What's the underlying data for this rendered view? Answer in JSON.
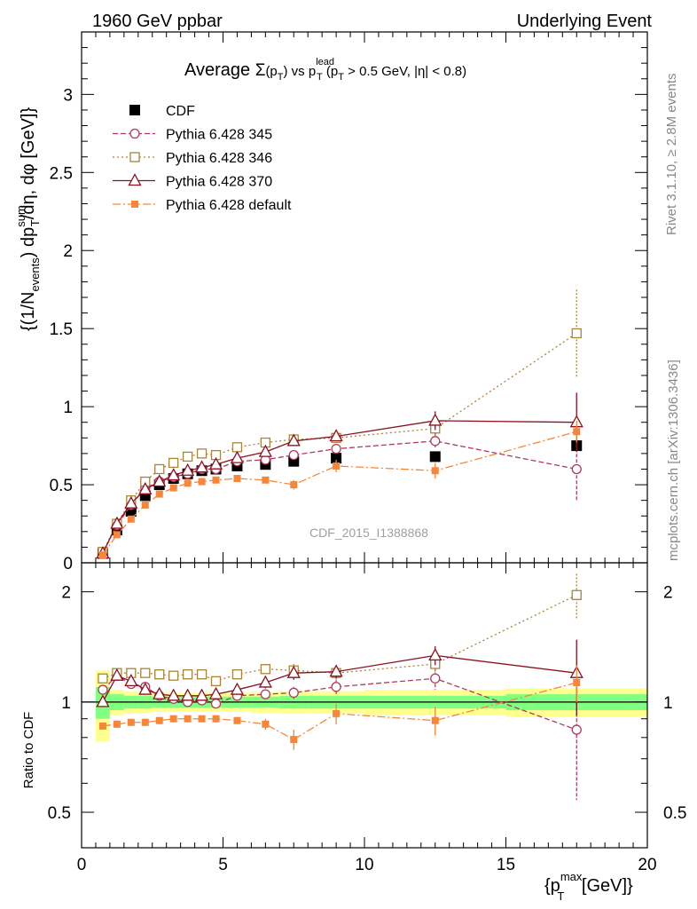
{
  "header": {
    "left": "1960 GeV ppbar",
    "right": "Underlying Event"
  },
  "side_labels": {
    "rivet": "Rivet 3.1.10, ≥ 2.8M events",
    "mcplots": "mcplots.cern.ch [arXiv:1306.3436]"
  },
  "watermark": "CDF_2015_I1388868",
  "chart_data": [
    {
      "type": "scatter",
      "panel": "main",
      "title": {
        "prefix": "Average ",
        "sigma": "Σ",
        "paren_open": "(p",
        "sub_T": "T",
        "paren_close": ")",
        "vs": " vs p",
        "sup_lead": "lead",
        "sub_T2": "T",
        "cut": " (p",
        "sub_T3": "T",
        "cut_rest": " > 0.5 GeV, |η| < 0.8)"
      },
      "ylabel": {
        "part1": "{(1/N",
        "sub_events": "events",
        "part2": ") dp",
        "sup_sum": "sum",
        "sub_T": "T",
        "part3": "/dη, dφ [GeV]}"
      },
      "xlim": [
        0,
        20
      ],
      "ylim": [
        0,
        3.4
      ],
      "y_ticks": [
        "0",
        "0.5",
        "1",
        "1.5",
        "2",
        "2.5",
        "3"
      ],
      "legend_position": "top-left",
      "series": [
        {
          "name": "CDF",
          "color": "#000000",
          "marker": "filled-square",
          "line": "none",
          "x": [
            0.75,
            1.25,
            1.75,
            2.25,
            2.75,
            3.25,
            3.75,
            4.25,
            4.75,
            5.5,
            6.5,
            7.5,
            9.0,
            12.5,
            17.5
          ],
          "y": [
            0.06,
            0.21,
            0.33,
            0.43,
            0.5,
            0.54,
            0.57,
            0.59,
            0.6,
            0.62,
            0.63,
            0.65,
            0.67,
            0.68,
            0.75
          ],
          "err": [
            0.005,
            0.005,
            0.01,
            0.01,
            0.01,
            0.01,
            0.01,
            0.01,
            0.01,
            0.01,
            0.01,
            0.015,
            0.02,
            0.025,
            0.04
          ]
        },
        {
          "name": "Pythia 6.428 345",
          "color": "#b03a5b",
          "marker": "open-circle",
          "line": "dashed",
          "x": [
            0.75,
            1.25,
            1.75,
            2.25,
            2.75,
            3.25,
            3.75,
            4.25,
            4.75,
            5.5,
            6.5,
            7.5,
            9.0,
            12.5,
            17.5
          ],
          "y": [
            0.065,
            0.24,
            0.37,
            0.48,
            0.52,
            0.55,
            0.57,
            0.6,
            0.6,
            0.65,
            0.66,
            0.69,
            0.73,
            0.78,
            0.6
          ],
          "err": [
            0.005,
            0.01,
            0.01,
            0.01,
            0.01,
            0.01,
            0.015,
            0.015,
            0.015,
            0.02,
            0.02,
            0.025,
            0.03,
            0.05,
            0.2
          ]
        },
        {
          "name": "Pythia 6.428 346",
          "color": "#a8843a",
          "marker": "open-square",
          "line": "dotted",
          "x": [
            0.75,
            1.25,
            1.75,
            2.25,
            2.75,
            3.25,
            3.75,
            4.25,
            4.75,
            5.5,
            6.5,
            7.5,
            9.0,
            12.5,
            17.5
          ],
          "y": [
            0.07,
            0.25,
            0.4,
            0.52,
            0.6,
            0.64,
            0.68,
            0.7,
            0.69,
            0.74,
            0.77,
            0.79,
            0.8,
            0.86,
            1.47
          ],
          "err": [
            0.005,
            0.01,
            0.01,
            0.01,
            0.01,
            0.01,
            0.015,
            0.015,
            0.015,
            0.02,
            0.02,
            0.03,
            0.03,
            0.05,
            0.28
          ]
        },
        {
          "name": "Pythia 6.428 370",
          "color": "#8b1020",
          "marker": "open-triangle",
          "line": "solid",
          "x": [
            0.75,
            1.25,
            1.75,
            2.25,
            2.75,
            3.25,
            3.75,
            4.25,
            4.75,
            5.5,
            6.5,
            7.5,
            9.0,
            12.5,
            17.5
          ],
          "y": [
            0.06,
            0.25,
            0.38,
            0.47,
            0.52,
            0.56,
            0.59,
            0.61,
            0.63,
            0.67,
            0.71,
            0.78,
            0.81,
            0.91,
            0.9
          ],
          "err": [
            0.005,
            0.01,
            0.01,
            0.01,
            0.01,
            0.01,
            0.015,
            0.015,
            0.015,
            0.02,
            0.02,
            0.03,
            0.03,
            0.06,
            0.19
          ]
        },
        {
          "name": "Pythia 6.428 default",
          "color": "#f5863a",
          "marker": "filled-small-square",
          "line": "dashdot",
          "x": [
            0.75,
            1.25,
            1.75,
            2.25,
            2.75,
            3.25,
            3.75,
            4.25,
            4.75,
            5.5,
            6.5,
            7.5,
            9.0,
            12.5,
            17.5
          ],
          "y": [
            0.05,
            0.18,
            0.28,
            0.37,
            0.44,
            0.48,
            0.51,
            0.52,
            0.53,
            0.54,
            0.53,
            0.5,
            0.62,
            0.59,
            0.84
          ],
          "err": [
            0.005,
            0.005,
            0.01,
            0.01,
            0.01,
            0.01,
            0.01,
            0.01,
            0.01,
            0.015,
            0.02,
            0.03,
            0.04,
            0.05,
            0.07
          ]
        }
      ]
    },
    {
      "type": "scatter",
      "panel": "ratio",
      "ylabel": "Ratio to CDF",
      "xlabel": {
        "open": "{p",
        "sup_max": "max",
        "sub_T": "T",
        "close": " [GeV]}"
      },
      "xlim": [
        0,
        20
      ],
      "ylim": [
        0.4,
        2.4
      ],
      "y_scale": "log",
      "x_ticks": [
        "0",
        "5",
        "10",
        "15",
        "20"
      ],
      "y_ticks": [
        "0.5",
        "1",
        "2"
      ],
      "bands": {
        "bin_edges": [
          0.5,
          1.0,
          1.5,
          2.0,
          2.5,
          3.0,
          3.5,
          4.0,
          4.5,
          5.0,
          6.0,
          7.0,
          8.0,
          10.0,
          15.0,
          20.0
        ],
        "green_half_width": [
          0.1,
          0.05,
          0.04,
          0.04,
          0.035,
          0.035,
          0.035,
          0.035,
          0.035,
          0.035,
          0.035,
          0.04,
          0.04,
          0.04,
          0.05
        ],
        "yellow_half_width": [
          0.22,
          0.08,
          0.07,
          0.065,
          0.06,
          0.06,
          0.06,
          0.06,
          0.06,
          0.06,
          0.065,
          0.07,
          0.07,
          0.08,
          0.09
        ],
        "green_color": "#80ff80",
        "yellow_color": "#ffff90"
      },
      "series": [
        {
          "name": "Pythia 6.428 345",
          "color": "#b03a5b",
          "marker": "open-circle",
          "line": "dashed",
          "x": [
            0.75,
            1.25,
            1.75,
            2.25,
            2.75,
            3.25,
            3.75,
            4.25,
            4.75,
            5.5,
            6.5,
            7.5,
            9.0,
            12.5,
            17.5
          ],
          "y": [
            1.08,
            1.18,
            1.12,
            1.1,
            1.04,
            1.02,
            1.0,
            1.01,
            0.99,
            1.04,
            1.05,
            1.06,
            1.1,
            1.16,
            0.84
          ],
          "err": [
            0.02,
            0.03,
            0.03,
            0.03,
            0.03,
            0.03,
            0.03,
            0.03,
            0.03,
            0.03,
            0.03,
            0.04,
            0.05,
            0.08,
            0.3
          ]
        },
        {
          "name": "Pythia 6.428 346",
          "color": "#a8843a",
          "marker": "open-square",
          "line": "dotted",
          "x": [
            0.75,
            1.25,
            1.75,
            2.25,
            2.75,
            3.25,
            3.75,
            4.25,
            4.75,
            5.5,
            6.5,
            7.5,
            9.0,
            12.5,
            17.5
          ],
          "y": [
            1.16,
            1.2,
            1.2,
            1.2,
            1.19,
            1.18,
            1.19,
            1.19,
            1.14,
            1.19,
            1.23,
            1.22,
            1.2,
            1.27,
            1.96
          ],
          "err": [
            0.02,
            0.03,
            0.03,
            0.03,
            0.03,
            0.03,
            0.03,
            0.03,
            0.03,
            0.03,
            0.04,
            0.05,
            0.05,
            0.08,
            0.28
          ]
        },
        {
          "name": "Pythia 6.428 370",
          "color": "#8b1020",
          "marker": "open-triangle",
          "line": "solid",
          "x": [
            0.75,
            1.25,
            1.75,
            2.25,
            2.75,
            3.25,
            3.75,
            4.25,
            4.75,
            5.5,
            6.5,
            7.5,
            9.0,
            12.5,
            17.5
          ],
          "y": [
            1.0,
            1.18,
            1.14,
            1.08,
            1.05,
            1.04,
            1.04,
            1.04,
            1.05,
            1.08,
            1.13,
            1.2,
            1.21,
            1.34,
            1.2
          ],
          "err": [
            0.02,
            0.03,
            0.03,
            0.03,
            0.03,
            0.03,
            0.03,
            0.03,
            0.03,
            0.03,
            0.04,
            0.05,
            0.05,
            0.08,
            0.28
          ]
        },
        {
          "name": "Pythia 6.428 default",
          "color": "#f5863a",
          "marker": "filled-small-square",
          "line": "dashdot",
          "x": [
            0.75,
            1.25,
            1.75,
            2.25,
            2.75,
            3.25,
            3.75,
            4.25,
            4.75,
            5.5,
            6.5,
            7.5,
            9.0,
            12.5,
            17.5
          ],
          "y": [
            0.86,
            0.87,
            0.88,
            0.88,
            0.89,
            0.9,
            0.9,
            0.9,
            0.9,
            0.89,
            0.87,
            0.79,
            0.93,
            0.89,
            1.13
          ],
          "err": [
            0.02,
            0.02,
            0.02,
            0.02,
            0.02,
            0.02,
            0.02,
            0.02,
            0.02,
            0.02,
            0.03,
            0.05,
            0.06,
            0.08,
            0.13
          ]
        }
      ]
    }
  ]
}
